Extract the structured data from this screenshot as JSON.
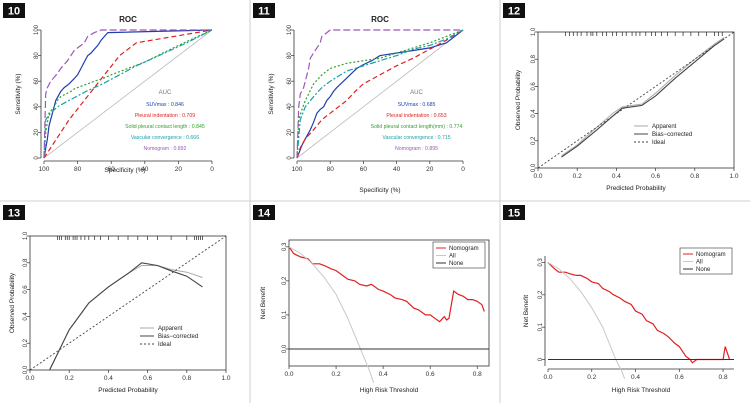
{
  "figure": {
    "panels_label": [
      "10",
      "11",
      "12",
      "13",
      "14",
      "15"
    ]
  },
  "colors": {
    "blue": "#1f3fb0",
    "red": "#e02020",
    "green": "#33a02c",
    "teal": "#1aa0a8",
    "purple": "#9b59b6",
    "gray": "#9e9e9e",
    "dark": "#333333"
  },
  "chart_data": [
    {
      "id": "10",
      "type": "line",
      "title": "ROC",
      "xlabel": "Specificity (%)",
      "ylabel": "Sensitivity (%)",
      "xlim": [
        100,
        0
      ],
      "ylim": [
        0,
        100
      ],
      "xticks": [
        "100",
        "80",
        "60",
        "40",
        "20",
        "0"
      ],
      "yticks": [
        "0",
        "20",
        "40",
        "60",
        "80",
        "100"
      ],
      "legend_title": "AUC",
      "legend": [
        {
          "label": "SUVmax : 0.846",
          "color": "blue"
        },
        {
          "label": "Pleural indentation : 0.709",
          "color": "red"
        },
        {
          "label": "Solid pleural contact length : 0.845",
          "color": "green"
        },
        {
          "label": "Vascular convergence : 0.666",
          "color": "teal"
        },
        {
          "label": "Nomogram : 0.892",
          "color": "purple"
        }
      ],
      "series": [
        {
          "name": "SUVmax",
          "color": "blue",
          "dash": "",
          "x": [
            100,
            98,
            97,
            95,
            93,
            90,
            88,
            85,
            82,
            80,
            78,
            76,
            74,
            72,
            70,
            68,
            66,
            64,
            62,
            0
          ],
          "y": [
            0,
            15,
            25,
            35,
            45,
            52,
            55,
            58,
            62,
            65,
            70,
            75,
            80,
            82,
            85,
            88,
            92,
            95,
            98,
            100
          ]
        },
        {
          "name": "Pleural indentation",
          "color": "red",
          "dash": "5,3",
          "x": [
            100,
            85,
            70,
            55,
            45,
            0
          ],
          "y": [
            0,
            30,
            55,
            80,
            90,
            100
          ]
        },
        {
          "name": "Solid pleural contact length",
          "color": "green",
          "dash": "2,2",
          "x": [
            100,
            99,
            97,
            94,
            92,
            90,
            87,
            84,
            82,
            78,
            74,
            70,
            65,
            60,
            40,
            20,
            0
          ],
          "y": [
            0,
            20,
            35,
            40,
            45,
            48,
            50,
            52,
            54,
            56,
            58,
            60,
            62,
            65,
            75,
            88,
            100
          ]
        },
        {
          "name": "Vascular convergence",
          "color": "teal",
          "dash": "6,2,2,2",
          "x": [
            100,
            99,
            96,
            92,
            85,
            75,
            65,
            55,
            45,
            35,
            25,
            15,
            0
          ],
          "y": [
            0,
            30,
            35,
            40,
            45,
            52,
            58,
            65,
            72,
            78,
            84,
            90,
            100
          ]
        },
        {
          "name": "Nomogram",
          "color": "purple",
          "dash": "7,3",
          "x": [
            100,
            99,
            98,
            96,
            94,
            92,
            90,
            88,
            86,
            84,
            82,
            80,
            78,
            76,
            74,
            70,
            66,
            62,
            58,
            50,
            0
          ],
          "y": [
            0,
            50,
            55,
            60,
            63,
            66,
            70,
            73,
            76,
            80,
            84,
            86,
            88,
            90,
            95,
            98,
            100,
            100,
            100,
            100,
            100
          ]
        }
      ]
    },
    {
      "id": "11",
      "type": "line",
      "title": "ROC",
      "xlabel": "Specificity (%)",
      "ylabel": "Sensitivity (%)",
      "xlim": [
        100,
        0
      ],
      "ylim": [
        0,
        100
      ],
      "xticks": [
        "100",
        "80",
        "60",
        "40",
        "20",
        "0"
      ],
      "yticks": [
        "0",
        "20",
        "40",
        "60",
        "80",
        "100"
      ],
      "legend_title": "AUC",
      "legend": [
        {
          "label": "SUVmax : 0.685",
          "color": "blue"
        },
        {
          "label": "Pleural indentation : 0.653",
          "color": "red"
        },
        {
          "label": "Solid pleural contact length(mm) : 0.774",
          "color": "green"
        },
        {
          "label": "Vascular convergence : 0.715",
          "color": "teal"
        },
        {
          "label": "Nomogram : 0.895",
          "color": "purple"
        }
      ],
      "series": [
        {
          "name": "SUVmax",
          "color": "blue",
          "dash": "",
          "x": [
            100,
            97,
            95,
            92,
            90,
            88,
            86,
            84,
            82,
            80,
            78,
            76,
            72,
            68,
            64,
            60,
            55,
            50,
            40,
            30,
            20,
            10,
            0
          ],
          "y": [
            0,
            10,
            15,
            22,
            28,
            35,
            38,
            40,
            45,
            48,
            52,
            55,
            60,
            65,
            70,
            73,
            76,
            80,
            82,
            84,
            86,
            90,
            100
          ]
        },
        {
          "name": "Pleural indentation",
          "color": "red",
          "dash": "5,3",
          "x": [
            100,
            98,
            95,
            90,
            85,
            80,
            75,
            70,
            65,
            60,
            50,
            40,
            30,
            20,
            10,
            0
          ],
          "y": [
            0,
            8,
            15,
            22,
            30,
            35,
            40,
            45,
            52,
            58,
            65,
            72,
            78,
            85,
            92,
            100
          ]
        },
        {
          "name": "Solid pleural contact length(mm)",
          "color": "green",
          "dash": "2,2",
          "x": [
            100,
            99,
            97,
            95,
            93,
            90,
            85,
            80,
            75,
            70,
            60,
            50,
            40,
            30,
            20,
            0
          ],
          "y": [
            0,
            30,
            38,
            45,
            50,
            58,
            65,
            70,
            72,
            74,
            76,
            78,
            82,
            86,
            90,
            100
          ]
        },
        {
          "name": "Vascular convergence",
          "color": "teal",
          "dash": "6,2,2,2",
          "x": [
            100,
            98,
            95,
            90,
            85,
            80,
            75,
            70,
            60,
            50,
            40,
            30,
            20,
            10,
            0
          ],
          "y": [
            0,
            30,
            40,
            48,
            55,
            60,
            64,
            68,
            72,
            76,
            80,
            85,
            88,
            93,
            100
          ]
        },
        {
          "name": "Nomogram",
          "color": "purple",
          "dash": "7,3",
          "x": [
            100,
            99,
            98,
            96,
            95,
            93,
            92,
            90,
            88,
            86,
            85,
            82,
            80,
            75,
            70,
            60,
            0
          ],
          "y": [
            0,
            40,
            50,
            55,
            60,
            70,
            78,
            82,
            86,
            90,
            95,
            98,
            100,
            100,
            100,
            100,
            100
          ]
        }
      ]
    },
    {
      "id": "12",
      "type": "line",
      "xlabel": "Predicted Probability",
      "ylabel": "Observed Probability",
      "xlim": [
        0,
        1
      ],
      "ylim": [
        0,
        1
      ],
      "xticks": [
        "0.0",
        "0.2",
        "0.4",
        "0.6",
        "0.8",
        "1.0"
      ],
      "yticks": [
        "0.0",
        "0.2",
        "0.4",
        "0.6",
        "0.8",
        "1.0"
      ],
      "legend": [
        {
          "label": "Apparent",
          "style": "apparent"
        },
        {
          "label": "Bias−corrected",
          "style": "bias"
        },
        {
          "label": "Ideal",
          "style": "ideal"
        }
      ],
      "rug": [
        0.14,
        0.16,
        0.18,
        0.2,
        0.22,
        0.25,
        0.27,
        0.28,
        0.3,
        0.33,
        0.35,
        0.38,
        0.4,
        0.43,
        0.45,
        0.48,
        0.5,
        0.52,
        0.55,
        0.58,
        0.6,
        0.63,
        0.66,
        0.7,
        0.74,
        0.78,
        0.82,
        0.86,
        0.9,
        0.92,
        0.94
      ],
      "series": [
        {
          "name": "Apparent",
          "x": [
            0.12,
            0.2,
            0.3,
            0.38,
            0.43,
            0.48,
            0.53,
            0.6,
            0.7,
            0.8,
            0.9,
            0.95
          ],
          "y": [
            0.09,
            0.17,
            0.3,
            0.4,
            0.45,
            0.46,
            0.47,
            0.55,
            0.68,
            0.8,
            0.91,
            0.96
          ]
        },
        {
          "name": "Bias−corrected",
          "x": [
            0.12,
            0.2,
            0.3,
            0.38,
            0.43,
            0.48,
            0.53,
            0.6,
            0.7,
            0.8,
            0.9,
            0.95
          ],
          "y": [
            0.08,
            0.16,
            0.28,
            0.38,
            0.44,
            0.45,
            0.46,
            0.53,
            0.66,
            0.78,
            0.9,
            0.95
          ]
        },
        {
          "name": "Ideal",
          "x": [
            0,
            1
          ],
          "y": [
            0,
            1
          ]
        }
      ]
    },
    {
      "id": "13",
      "type": "line",
      "xlabel": "Predicted Probability",
      "ylabel": "Observed Probability",
      "xlim": [
        0,
        1
      ],
      "ylim": [
        0,
        1
      ],
      "xticks": [
        "0.0",
        "0.2",
        "0.4",
        "0.6",
        "0.8",
        "1.0"
      ],
      "yticks": [
        "0.0",
        "0.2",
        "0.4",
        "0.6",
        "0.8",
        "1.0"
      ],
      "legend": [
        {
          "label": "Apparent",
          "style": "apparent"
        },
        {
          "label": "Bias−corrected",
          "style": "bias"
        },
        {
          "label": "Ideal",
          "style": "ideal"
        }
      ],
      "rug": [
        0.14,
        0.15,
        0.16,
        0.18,
        0.19,
        0.2,
        0.22,
        0.23,
        0.24,
        0.26,
        0.28,
        0.3,
        0.33,
        0.36,
        0.4,
        0.45,
        0.5,
        0.55,
        0.6,
        0.65,
        0.72,
        0.8,
        0.84,
        0.85,
        0.86,
        0.87,
        0.88
      ],
      "series": [
        {
          "name": "Apparent",
          "x": [
            0.1,
            0.2,
            0.3,
            0.4,
            0.5,
            0.57,
            0.65,
            0.72,
            0.8,
            0.88
          ],
          "y": [
            0.0,
            0.3,
            0.5,
            0.62,
            0.72,
            0.78,
            0.78,
            0.75,
            0.73,
            0.69
          ]
        },
        {
          "name": "Bias−corrected",
          "x": [
            0.1,
            0.2,
            0.3,
            0.4,
            0.5,
            0.57,
            0.65,
            0.72,
            0.8,
            0.88
          ],
          "y": [
            0.0,
            0.3,
            0.5,
            0.62,
            0.72,
            0.8,
            0.78,
            0.74,
            0.7,
            0.62
          ]
        },
        {
          "name": "Ideal",
          "x": [
            0,
            1
          ],
          "y": [
            0,
            1
          ]
        }
      ]
    },
    {
      "id": "14",
      "type": "line",
      "xlabel": "High Risk Threshold",
      "ylabel": "Net Benefit",
      "xlim": [
        0,
        0.85
      ],
      "ylim": [
        -0.05,
        0.32
      ],
      "xticks": [
        "0.0",
        "0.2",
        "0.4",
        "0.6",
        "0.8"
      ],
      "xtick_values": [
        0,
        0.2,
        0.4,
        0.6,
        0.8
      ],
      "yticks": [
        "0.0",
        "0.1",
        "0.2",
        "0.3"
      ],
      "ytick_values": [
        0,
        0.1,
        0.2,
        0.3
      ],
      "legend": [
        {
          "label": "Nomogram",
          "color": "red"
        },
        {
          "label": "All",
          "color": "gray"
        },
        {
          "label": "None",
          "color": "dark"
        }
      ],
      "series": [
        {
          "name": "Nomogram",
          "color": "red",
          "x": [
            0,
            0.02,
            0.05,
            0.08,
            0.1,
            0.13,
            0.15,
            0.18,
            0.2,
            0.22,
            0.25,
            0.28,
            0.3,
            0.33,
            0.35,
            0.38,
            0.4,
            0.43,
            0.45,
            0.48,
            0.5,
            0.53,
            0.55,
            0.58,
            0.6,
            0.62,
            0.64,
            0.66,
            0.67,
            0.68,
            0.7,
            0.72,
            0.74,
            0.76,
            0.78,
            0.8,
            0.82,
            0.83
          ],
          "y": [
            0.3,
            0.28,
            0.27,
            0.265,
            0.25,
            0.25,
            0.245,
            0.235,
            0.23,
            0.22,
            0.205,
            0.2,
            0.19,
            0.185,
            0.19,
            0.175,
            0.17,
            0.16,
            0.15,
            0.145,
            0.14,
            0.12,
            0.115,
            0.1,
            0.1,
            0.09,
            0.08,
            0.095,
            0.085,
            0.09,
            0.17,
            0.16,
            0.155,
            0.145,
            0.145,
            0.14,
            0.13,
            0.11
          ]
        },
        {
          "name": "All",
          "color": "gray",
          "x": [
            0,
            0.05,
            0.1,
            0.15,
            0.2,
            0.25,
            0.28,
            0.31,
            0.34,
            0.36
          ],
          "y": [
            0.3,
            0.28,
            0.25,
            0.21,
            0.16,
            0.09,
            0.04,
            -0.01,
            -0.06,
            -0.1
          ]
        },
        {
          "name": "None",
          "color": "dark",
          "x": [
            0,
            0.85
          ],
          "y": [
            0,
            0
          ]
        }
      ]
    },
    {
      "id": "15",
      "type": "line",
      "xlabel": "High Risk Threshold",
      "ylabel": "Net Benefit",
      "xlim": [
        0,
        0.85
      ],
      "ylim": [
        -0.02,
        0.32
      ],
      "xticks": [
        "0.0",
        "0.2",
        "0.4",
        "0.6",
        "0.8"
      ],
      "xtick_values": [
        0,
        0.2,
        0.4,
        0.6,
        0.8
      ],
      "yticks": [
        "0",
        "0.1",
        "0.2",
        "0.3"
      ],
      "ytick_values": [
        0,
        0.1,
        0.2,
        0.3
      ],
      "legend": [
        {
          "label": "Nomogram",
          "color": "red"
        },
        {
          "label": "All",
          "color": "gray"
        },
        {
          "label": "None",
          "color": "dark"
        }
      ],
      "series": [
        {
          "name": "Nomogram",
          "color": "red",
          "x": [
            0,
            0.03,
            0.05,
            0.08,
            0.1,
            0.13,
            0.15,
            0.18,
            0.2,
            0.23,
            0.25,
            0.28,
            0.3,
            0.33,
            0.35,
            0.38,
            0.4,
            0.43,
            0.45,
            0.48,
            0.5,
            0.53,
            0.55,
            0.58,
            0.6,
            0.62,
            0.63,
            0.65,
            0.66,
            0.68,
            0.8,
            0.81,
            0.82,
            0.83
          ],
          "y": [
            0.3,
            0.28,
            0.27,
            0.27,
            0.265,
            0.26,
            0.26,
            0.25,
            0.24,
            0.235,
            0.22,
            0.21,
            0.2,
            0.19,
            0.18,
            0.17,
            0.15,
            0.14,
            0.12,
            0.11,
            0.09,
            0.08,
            0.07,
            0.05,
            0.04,
            0.02,
            0.01,
            0.0,
            -0.01,
            0.0,
            0.0,
            0.04,
            0.02,
            0.0
          ]
        },
        {
          "name": "All",
          "color": "gray",
          "x": [
            0,
            0.05,
            0.1,
            0.15,
            0.2,
            0.25,
            0.28,
            0.31,
            0.34,
            0.35
          ],
          "y": [
            0.3,
            0.28,
            0.25,
            0.21,
            0.16,
            0.1,
            0.05,
            0.0,
            -0.04,
            -0.06
          ]
        },
        {
          "name": "None",
          "color": "dark",
          "x": [
            0,
            0.85
          ],
          "y": [
            0,
            0
          ]
        }
      ]
    }
  ]
}
